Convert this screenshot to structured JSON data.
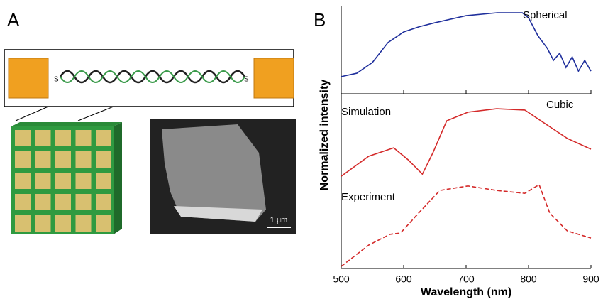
{
  "panel_labels": [
    "A",
    "B"
  ],
  "panel_a": {
    "linker_labels": [
      "S",
      "S"
    ],
    "scale_bar": "1 μm"
  },
  "chart_data": {
    "type": "line",
    "xlabel": "Wavelength (nm)",
    "ylabel": "Normalized intensity",
    "xlim": [
      500,
      900
    ],
    "xticks": [
      500,
      600,
      700,
      800,
      900
    ],
    "ylim": [
      0,
      100
    ],
    "annotation": "Cubic",
    "series": [
      {
        "name": "Spherical",
        "color": "#1f2f9c",
        "dashed": false,
        "x": [
          500,
          525,
          550,
          575,
          600,
          625,
          650,
          700,
          750,
          790,
          800,
          815,
          830,
          840,
          850,
          860,
          870,
          880,
          890,
          900
        ],
        "values": [
          73,
          74.3,
          78.4,
          86,
          90,
          92,
          93.5,
          96.2,
          97.3,
          97.3,
          95.4,
          88.6,
          83.8,
          79.2,
          81.9,
          76.5,
          80.5,
          75.1,
          79.2,
          75.1
        ]
      },
      {
        "name": "Simulation",
        "color": "#d42a2a",
        "dashed": false,
        "x": [
          500,
          544,
          584,
          607,
          630,
          647,
          669,
          703,
          749,
          794,
          828,
          862,
          900
        ],
        "values": [
          35.1,
          42.7,
          45.9,
          41.4,
          35.9,
          44.1,
          56.2,
          59.5,
          60.8,
          60.3,
          54.9,
          49.5,
          45.4
        ]
      },
      {
        "name": "Experiment",
        "color": "#d42a2a",
        "dashed": true,
        "x": [
          500,
          544,
          578,
          595,
          624,
          658,
          703,
          749,
          794,
          817,
          834,
          862,
          900
        ],
        "values": [
          0.8,
          8.9,
          13,
          13.5,
          21.1,
          29.7,
          31.4,
          29.7,
          28.6,
          31.9,
          21.1,
          14.3,
          11.6
        ]
      }
    ]
  }
}
